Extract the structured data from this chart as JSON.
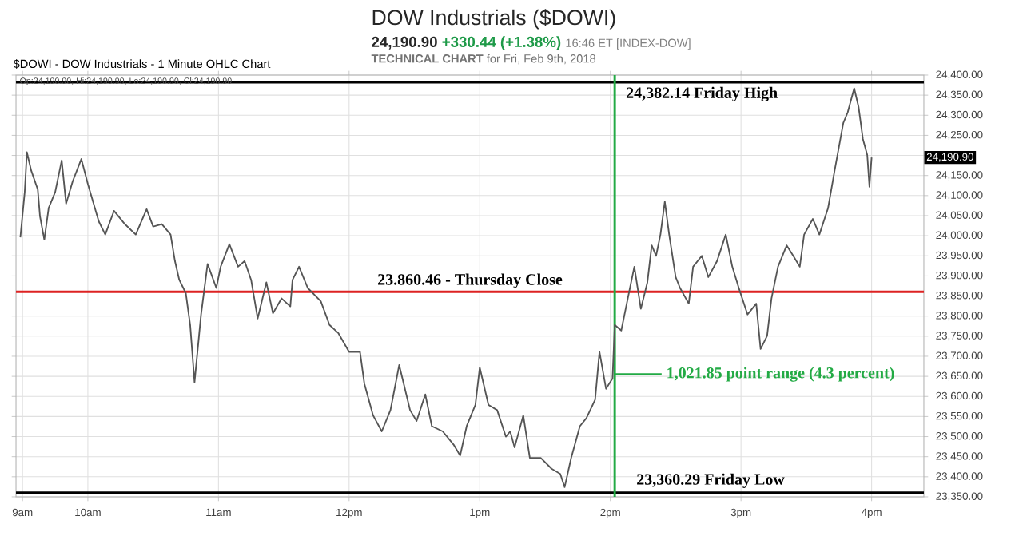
{
  "chart_data": {
    "type": "line",
    "title": "DOW Industrials ($DOWI)",
    "subtitle": "24,190.90",
    "annotations": [
      "+330.44 (+1.38%)",
      "16:46 ET [INDEX-DOW]",
      "**TECHNICAL CHART** for Fri, Feb 9th, 2018",
      "$DOWI - DOW Industrials - 1 Minute OHLC Chart",
      "Op:24,190.90, Hi:24,190.90, Lo:24,190.90, Cl:24,190.90",
      "24,190.90",
      {
        "text": "24,382.14 Friday High",
        "x": "2018-02-09T14:42",
        "y": 24382.14
      },
      {
        "text": "23,360.29 Friday Low",
        "x": "2018-02-09T14:46",
        "y": 23360.29
      },
      {
        "text": "1,021.85 point range (4.3 percent)",
        "x": "2018-02-09T14:02",
        "y": 23655
      }
    ],
    "series": [
      {
        "color": "#555555",
        "x": [
          "2018-02-09T09:29",
          "2018-02-09T09:31",
          "2018-02-09T09:32",
          "2018-02-09T09:34",
          "2018-02-09T09:37",
          "2018-02-09T09:38",
          "2018-02-09T09:40",
          "2018-02-09T09:42",
          "2018-02-09T09:45",
          "2018-02-09T09:48",
          "2018-02-09T09:50",
          "2018-02-09T09:53",
          "2018-02-09T09:57",
          "2018-02-09T10:00",
          "2018-02-09T10:05",
          "2018-02-09T10:08",
          "2018-02-09T10:12",
          "2018-02-09T10:17",
          "2018-02-09T10:22",
          "2018-02-09T10:27",
          "2018-02-09T10:30",
          "2018-02-09T10:34",
          "2018-02-09T10:38",
          "2018-02-09T10:40",
          "2018-02-09T10:42",
          "2018-02-09T10:45",
          "2018-02-09T10:47",
          "2018-02-09T10:49",
          "2018-02-09T10:52",
          "2018-02-09T10:55",
          "2018-02-09T10:59",
          "2018-02-09T11:01",
          "2018-02-09T11:05",
          "2018-02-09T11:09",
          "2018-02-09T11:12",
          "2018-02-09T11:15",
          "2018-02-09T11:18",
          "2018-02-09T11:22",
          "2018-02-09T11:25",
          "2018-02-09T11:29",
          "2018-02-09T11:33",
          "2018-02-09T11:34",
          "2018-02-09T11:37",
          "2018-02-09T11:41",
          "2018-02-09T11:47",
          "2018-02-09T11:51",
          "2018-02-09T11:55",
          "2018-02-09T12:00",
          "2018-02-09T12:05",
          "2018-02-09T12:07",
          "2018-02-09T12:11",
          "2018-02-09T12:15",
          "2018-02-09T12:19",
          "2018-02-09T12:23",
          "2018-02-09T12:28",
          "2018-02-09T12:31",
          "2018-02-09T12:35",
          "2018-02-09T12:38",
          "2018-02-09T12:43",
          "2018-02-09T12:48",
          "2018-02-09T12:51",
          "2018-02-09T12:54",
          "2018-02-09T12:58",
          "2018-02-09T13:00",
          "2018-02-09T13:04",
          "2018-02-09T13:08",
          "2018-02-09T13:12",
          "2018-02-09T13:14",
          "2018-02-09T13:16",
          "2018-02-09T13:20",
          "2018-02-09T13:23",
          "2018-02-09T13:28",
          "2018-02-09T13:33",
          "2018-02-09T13:37",
          "2018-02-09T13:39",
          "2018-02-09T13:42",
          "2018-02-09T13:46",
          "2018-02-09T13:49",
          "2018-02-09T13:53",
          "2018-02-09T13:55",
          "2018-02-09T13:58",
          "2018-02-09T14:01",
          "2018-02-09T14:02",
          "2018-02-09T14:05",
          "2018-02-09T14:08",
          "2018-02-09T14:11",
          "2018-02-09T14:14",
          "2018-02-09T14:17",
          "2018-02-09T14:19",
          "2018-02-09T14:21",
          "2018-02-09T14:23",
          "2018-02-09T14:25",
          "2018-02-09T14:27",
          "2018-02-09T14:30",
          "2018-02-09T14:32",
          "2018-02-09T14:36",
          "2018-02-09T14:38",
          "2018-02-09T14:42",
          "2018-02-09T14:45",
          "2018-02-09T14:49",
          "2018-02-09T14:53",
          "2018-02-09T14:56",
          "2018-02-09T14:59",
          "2018-02-09T15:03",
          "2018-02-09T15:07",
          "2018-02-09T15:09",
          "2018-02-09T15:12",
          "2018-02-09T15:14",
          "2018-02-09T15:17",
          "2018-02-09T15:21",
          "2018-02-09T15:24",
          "2018-02-09T15:27",
          "2018-02-09T15:29",
          "2018-02-09T15:33",
          "2018-02-09T15:36",
          "2018-02-09T15:40",
          "2018-02-09T15:43",
          "2018-02-09T15:47",
          "2018-02-09T15:49",
          "2018-02-09T15:52",
          "2018-02-09T15:54",
          "2018-02-09T15:56",
          "2018-02-09T15:58",
          "2018-02-09T15:59",
          "2018-02-09T16:00"
        ],
        "values": [
          23996,
          24109,
          24208,
          24162,
          24115,
          24049,
          23990,
          24069,
          24109,
          24188,
          24080,
          24135,
          24191,
          24129,
          24036,
          24003,
          24062,
          24029,
          24003,
          24066,
          24023,
          24029,
          24003,
          23937,
          23890,
          23857,
          23778,
          23635,
          23804,
          23930,
          23870,
          23923,
          23979,
          23923,
          23937,
          23890,
          23794,
          23884,
          23807,
          23844,
          23824,
          23890,
          23923,
          23870,
          23837,
          23778,
          23758,
          23711,
          23711,
          23632,
          23553,
          23513,
          23566,
          23678,
          23566,
          23539,
          23605,
          23526,
          23513,
          23480,
          23453,
          23526,
          23579,
          23672,
          23579,
          23566,
          23500,
          23513,
          23473,
          23553,
          23447,
          23447,
          23420,
          23407,
          23374,
          23447,
          23526,
          23546,
          23592,
          23711,
          23619,
          23645,
          23778,
          23764,
          23844,
          23923,
          23818,
          23884,
          23976,
          23950,
          24003,
          24085,
          24003,
          23897,
          23870,
          23831,
          23923,
          23950,
          23897,
          23937,
          24003,
          23923,
          23870,
          23804,
          23831,
          23718,
          23751,
          23844,
          23923,
          23976,
          23950,
          23923,
          24003,
          24042,
          24003,
          24069,
          24162,
          24281,
          24307,
          24367,
          24321,
          24241,
          24201,
          24122,
          24195
        ]
      }
    ],
    "xlim": [
      "2018-02-09T09:27",
      "2018-02-09T16:24"
    ],
    "xticks": [
      {
        "value": "2018-02-09T09:30",
        "label": "9am"
      },
      {
        "value": "2018-02-09T10:00",
        "label": "10am"
      },
      {
        "value": "2018-02-09T11:00",
        "label": "11am"
      },
      {
        "value": "2018-02-09T12:00",
        "label": "12pm"
      },
      {
        "value": "2018-02-09T13:00",
        "label": "1pm"
      },
      {
        "value": "2018-02-09T14:00",
        "label": "2pm"
      },
      {
        "value": "2018-02-09T15:00",
        "label": "3pm"
      },
      {
        "value": "2018-02-09T16:00",
        "label": "4pm"
      }
    ],
    "ylim": [
      23350,
      24400
    ],
    "yticks": [
      {
        "value": 23350,
        "label": "23,350.00"
      },
      {
        "value": 23400,
        "label": "23,400.00"
      },
      {
        "value": 23450,
        "label": "23,450.00"
      },
      {
        "value": 23500,
        "label": "23,500.00"
      },
      {
        "value": 23550,
        "label": "23,550.00"
      },
      {
        "value": 23600,
        "label": "23,600.00"
      },
      {
        "value": 23650,
        "label": "23,650.00"
      },
      {
        "value": 23700,
        "label": "23,700.00"
      },
      {
        "value": 23750,
        "label": "23,750.00"
      },
      {
        "value": 23800,
        "label": "23,800.00"
      },
      {
        "value": 23850,
        "label": "23,850.00"
      },
      {
        "value": 23900,
        "label": "23,900.00"
      },
      {
        "value": 23950,
        "label": "23,950.00"
      },
      {
        "value": 24000,
        "label": "24,000.00"
      },
      {
        "value": 24050,
        "label": "24,050.00"
      },
      {
        "value": 24100,
        "label": "24,100.00"
      },
      {
        "value": 24150,
        "label": "24,150.00"
      },
      {
        "value": 24200,
        "label": null
      },
      {
        "value": 24250,
        "label": "24,250.00"
      },
      {
        "value": 24300,
        "label": "24,300.00"
      },
      {
        "value": 24350,
        "label": "24,350.00"
      },
      {
        "value": 24400,
        "label": "24,400.00"
      }
    ],
    "ref_lines": [
      {
        "axis": "y",
        "value": 23860.46,
        "label": "23.860.46 - Thursday Close",
        "color": "#dd2222"
      },
      {
        "axis": "y",
        "value": 24382.14,
        "color": "#000000"
      },
      {
        "axis": "y",
        "value": 23360.29,
        "color": "#000000"
      },
      {
        "axis": "x",
        "value": "2018-02-09T14:02",
        "color": "#22aa44"
      }
    ],
    "grid": true,
    "marker": "none",
    "line_style": "solid"
  }
}
